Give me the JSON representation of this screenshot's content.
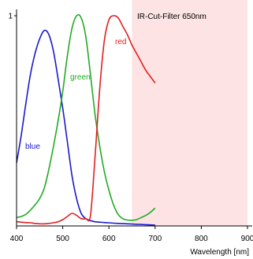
{
  "chart_data": {
    "type": "line",
    "xlabel": "Wavelength [nm]",
    "x_ticks": [
      400,
      500,
      600,
      700,
      800,
      900
    ],
    "x_tick_labels": [
      "400",
      "500",
      "600",
      "700",
      "800",
      "900"
    ],
    "y_ticks": [
      1
    ],
    "y_tick_labels": [
      "1"
    ],
    "xlim": [
      400,
      900
    ],
    "ylim": [
      0,
      1
    ],
    "grid": false,
    "shaded_region": {
      "x_start": 650,
      "x_end": 900,
      "color": "#fde3e3",
      "label": "IR-Cut-Filter 650nm"
    },
    "series": [
      {
        "name": "blue",
        "color": "#1a1acc",
        "x": [
          400,
          410,
          420,
          430,
          440,
          450,
          460,
          470,
          480,
          490,
          500,
          510,
          520,
          530,
          540,
          550,
          560,
          570,
          580,
          590,
          600,
          610,
          620,
          630,
          640,
          650,
          660,
          670,
          680,
          690,
          700
        ],
        "y": [
          0.3,
          0.43,
          0.58,
          0.72,
          0.82,
          0.89,
          0.93,
          0.91,
          0.83,
          0.7,
          0.56,
          0.4,
          0.24,
          0.13,
          0.06,
          0.035,
          0.025,
          0.02,
          0.018,
          0.016,
          0.015,
          0.013,
          0.012,
          0.011,
          0.01,
          0.009,
          0.008,
          0.007,
          0.006,
          0.005,
          0.004
        ]
      },
      {
        "name": "green",
        "color": "#22aa22",
        "x": [
          400,
          410,
          420,
          430,
          440,
          450,
          460,
          470,
          480,
          490,
          500,
          510,
          520,
          530,
          540,
          550,
          560,
          570,
          580,
          590,
          600,
          610,
          620,
          630,
          640,
          650,
          660,
          670,
          680,
          690,
          700
        ],
        "y": [
          0.04,
          0.045,
          0.055,
          0.075,
          0.1,
          0.13,
          0.18,
          0.27,
          0.38,
          0.5,
          0.64,
          0.81,
          0.94,
          1.0,
          0.99,
          0.9,
          0.72,
          0.53,
          0.38,
          0.26,
          0.17,
          0.1,
          0.055,
          0.035,
          0.028,
          0.027,
          0.03,
          0.04,
          0.05,
          0.065,
          0.085
        ]
      },
      {
        "name": "red",
        "color": "#e02020",
        "x": [
          400,
          410,
          420,
          430,
          440,
          450,
          460,
          470,
          480,
          490,
          500,
          510,
          520,
          530,
          540,
          550,
          560,
          570,
          580,
          590,
          600,
          610,
          620,
          630,
          640,
          650,
          660,
          670,
          680,
          690,
          700
        ],
        "y": [
          0.02,
          0.018,
          0.016,
          0.015,
          0.012,
          0.01,
          0.01,
          0.012,
          0.015,
          0.02,
          0.03,
          0.045,
          0.06,
          0.05,
          0.035,
          0.035,
          0.05,
          0.33,
          0.65,
          0.88,
          0.98,
          1.0,
          0.99,
          0.95,
          0.91,
          0.86,
          0.82,
          0.78,
          0.74,
          0.71,
          0.68
        ]
      }
    ]
  }
}
